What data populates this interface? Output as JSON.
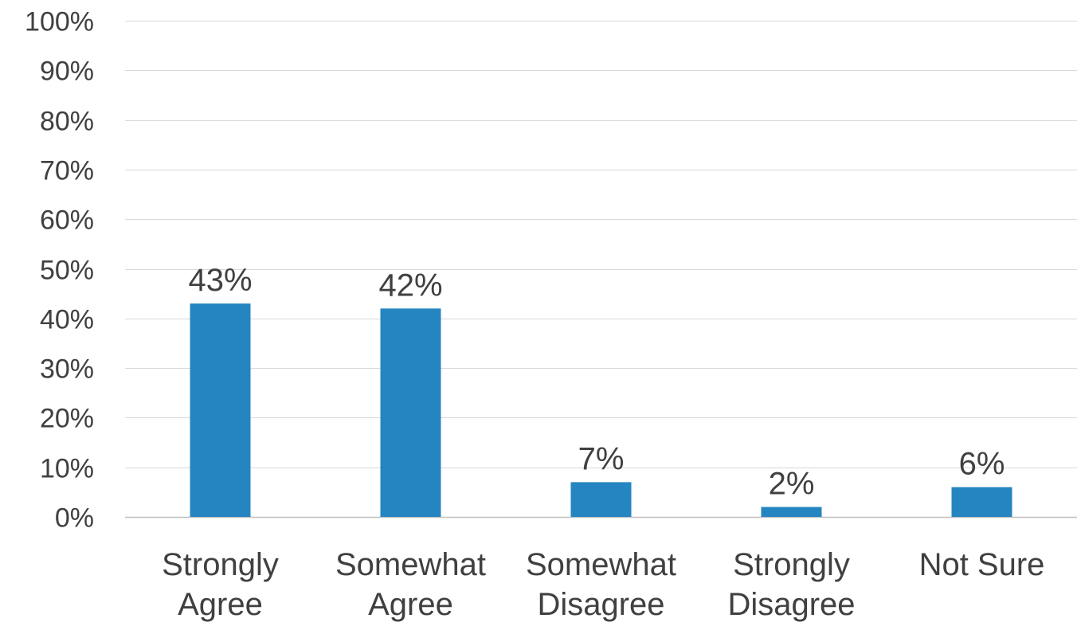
{
  "chart_data": {
    "type": "bar",
    "title": "",
    "xlabel": "",
    "ylabel": "",
    "categories": [
      [
        "Strongly",
        "Agree"
      ],
      [
        "Somewhat",
        "Agree"
      ],
      [
        "Somewhat",
        "Disagree"
      ],
      [
        "Strongly",
        "Disagree"
      ],
      [
        "Not Sure"
      ]
    ],
    "values": [
      43,
      42,
      7,
      2,
      6
    ],
    "data_labels": [
      "43%",
      "42%",
      "7%",
      "2%",
      "6%"
    ],
    "ylim": [
      0,
      100
    ],
    "y_ticks": [
      0,
      10,
      20,
      30,
      40,
      50,
      60,
      70,
      80,
      90,
      100
    ],
    "y_tick_labels": [
      "0%",
      "10%",
      "20%",
      "30%",
      "40%",
      "50%",
      "60%",
      "70%",
      "80%",
      "90%",
      "100%"
    ],
    "grid": true,
    "legend": "none",
    "colors": {
      "bar": "#2585C0",
      "grid": "#D9D9D9",
      "axis": "#BFBFBF",
      "text": "#404040",
      "tick_text": "#404040"
    }
  }
}
